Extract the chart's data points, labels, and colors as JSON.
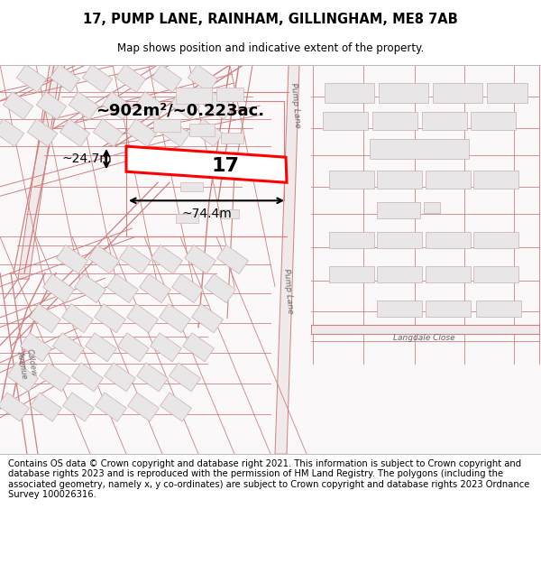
{
  "title": "17, PUMP LANE, RAINHAM, GILLINGHAM, ME8 7AB",
  "subtitle": "Map shows position and indicative extent of the property.",
  "footer": "Contains OS data © Crown copyright and database right 2021. This information is subject to Crown copyright and database rights 2023 and is reproduced with the permission of HM Land Registry. The polygons (including the associated geometry, namely x, y co-ordinates) are subject to Crown copyright and database rights 2023 Ordnance Survey 100026316.",
  "area_label": "~902m²/~0.223ac.",
  "width_label": "~74.4m",
  "height_label": "~24.7m",
  "number_label": "17",
  "map_bg": "#faf8f8",
  "road_line_color": "#d08080",
  "road_fill_color": "#f5eded",
  "building_fill": "#e8e6e6",
  "building_stroke": "#c8b0b0",
  "plot_line_color": "#ffffff",
  "highlight_stroke": "#ff0000",
  "title_fontsize": 10.5,
  "subtitle_fontsize": 8.5,
  "footer_fontsize": 7.2,
  "annotation_fontsize": 10,
  "area_fontsize": 13,
  "number_fontsize": 16
}
